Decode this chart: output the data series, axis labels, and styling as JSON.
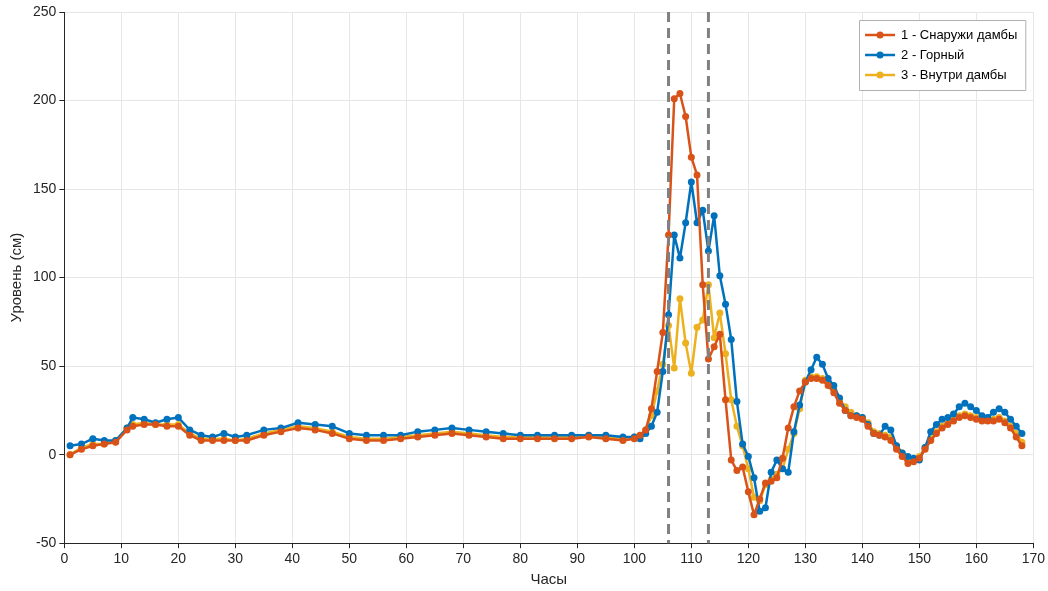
{
  "chart_data": {
    "type": "line",
    "xlabel": "Часы",
    "ylabel": "Уровень (см)",
    "x": [
      1,
      3,
      5,
      7,
      9,
      11,
      12,
      14,
      16,
      18,
      20,
      22,
      24,
      26,
      28,
      30,
      32,
      35,
      38,
      41,
      44,
      47,
      50,
      53,
      56,
      59,
      62,
      65,
      68,
      71,
      74,
      77,
      80,
      83,
      86,
      89,
      92,
      95,
      98,
      100,
      101,
      102,
      103,
      104,
      105,
      106,
      107,
      108,
      109,
      110,
      111,
      112,
      113,
      114,
      115,
      116,
      117,
      118,
      119,
      120,
      121,
      122,
      123,
      124,
      125,
      126,
      127,
      128,
      129,
      130,
      131,
      132,
      133,
      134,
      135,
      136,
      137,
      138,
      139,
      140,
      141,
      142,
      143,
      144,
      145,
      146,
      147,
      148,
      149,
      150,
      151,
      152,
      153,
      154,
      155,
      156,
      157,
      158,
      159,
      160,
      161,
      162,
      163,
      164,
      165,
      166,
      167,
      168
    ],
    "series": [
      {
        "name": "1 - Снаружи дамбы",
        "color": "#d95319",
        "values": [
          0,
          3,
          5,
          6,
          7,
          14,
          16,
          17,
          17,
          16,
          16,
          11,
          8,
          8,
          8,
          8,
          8,
          11,
          13,
          15,
          14,
          12,
          9,
          8,
          8,
          9,
          10,
          11,
          12,
          11,
          10,
          9,
          9,
          9,
          9,
          9,
          10,
          9,
          8,
          9,
          11,
          14,
          26,
          47,
          69,
          124,
          201,
          204,
          191,
          168,
          158,
          96,
          54,
          61,
          68,
          31,
          -3,
          -9,
          -7,
          -21,
          -34,
          -25,
          -16,
          -15,
          -13,
          -2,
          15,
          27,
          36,
          41,
          43,
          43,
          42,
          39,
          35,
          29,
          25,
          22,
          21,
          20,
          16,
          12,
          11,
          10,
          8,
          3,
          -1,
          -5,
          -4,
          -2,
          3,
          8,
          12,
          15,
          17,
          19,
          21,
          22,
          21,
          20,
          19,
          19,
          19,
          20,
          18,
          15,
          10,
          5
        ]
      },
      {
        "name": "2 - Горный",
        "color": "#0072bd",
        "values": [
          5,
          6,
          9,
          8,
          8,
          15,
          21,
          20,
          18,
          20,
          21,
          14,
          11,
          10,
          12,
          10,
          11,
          14,
          15,
          18,
          17,
          16,
          12,
          11,
          11,
          11,
          13,
          14,
          15,
          14,
          13,
          12,
          11,
          11,
          11,
          11,
          11,
          11,
          10,
          10,
          9,
          12,
          16,
          24,
          47,
          79,
          124,
          111,
          131,
          154,
          131,
          138,
          115,
          135,
          101,
          85,
          65,
          30,
          6,
          -1,
          -13,
          -32,
          -30,
          -10,
          -3,
          -8,
          -10,
          13,
          28,
          41,
          48,
          55,
          51,
          43,
          39,
          32,
          25,
          22,
          22,
          21,
          17,
          12,
          11,
          16,
          14,
          5,
          1,
          -1,
          -2,
          -3,
          4,
          13,
          17,
          20,
          21,
          23,
          27,
          29,
          27,
          25,
          22,
          21,
          24,
          26,
          24,
          20,
          16,
          12
        ]
      },
      {
        "name": "3 - Внутри дамбы",
        "color": "#edb120",
        "values": [
          0,
          4,
          6,
          6,
          8,
          15,
          17,
          18,
          17,
          17,
          17,
          12,
          9,
          9,
          9,
          8,
          9,
          12,
          14,
          16,
          15,
          13,
          10,
          9,
          9,
          10,
          11,
          12,
          13,
          12,
          11,
          10,
          10,
          10,
          10,
          10,
          11,
          10,
          9,
          10,
          11,
          14,
          22,
          36,
          51,
          73,
          49,
          88,
          63,
          46,
          72,
          76,
          96,
          66,
          80,
          57,
          31,
          16,
          5,
          -8,
          -24,
          -26,
          -17,
          -14,
          -11,
          -8,
          3,
          12,
          26,
          42,
          44,
          44,
          43,
          41,
          37,
          31,
          27,
          24,
          22,
          21,
          18,
          13,
          12,
          11,
          10,
          5,
          1,
          -3,
          -3,
          -1,
          4,
          9,
          13,
          16,
          18,
          20,
          22,
          23,
          22,
          21,
          20,
          20,
          20,
          21,
          19,
          16,
          12,
          7
        ]
      }
    ],
    "xlim": [
      0,
      170
    ],
    "xticks": [
      0,
      10,
      20,
      30,
      40,
      50,
      60,
      70,
      80,
      90,
      100,
      110,
      120,
      130,
      140,
      150,
      160,
      170
    ],
    "ylim": [
      -50,
      250
    ],
    "yticks": [
      -50,
      0,
      50,
      100,
      150,
      200,
      250
    ],
    "ref_lines": [
      {
        "axis": "x",
        "value": 106,
        "color": "#808080",
        "line_style": "dashed"
      },
      {
        "axis": "x",
        "value": 113,
        "color": "#808080",
        "line_style": "dashed"
      }
    ],
    "grid": true,
    "legend": "top right",
    "marker": "circle",
    "line_style": "solid"
  }
}
